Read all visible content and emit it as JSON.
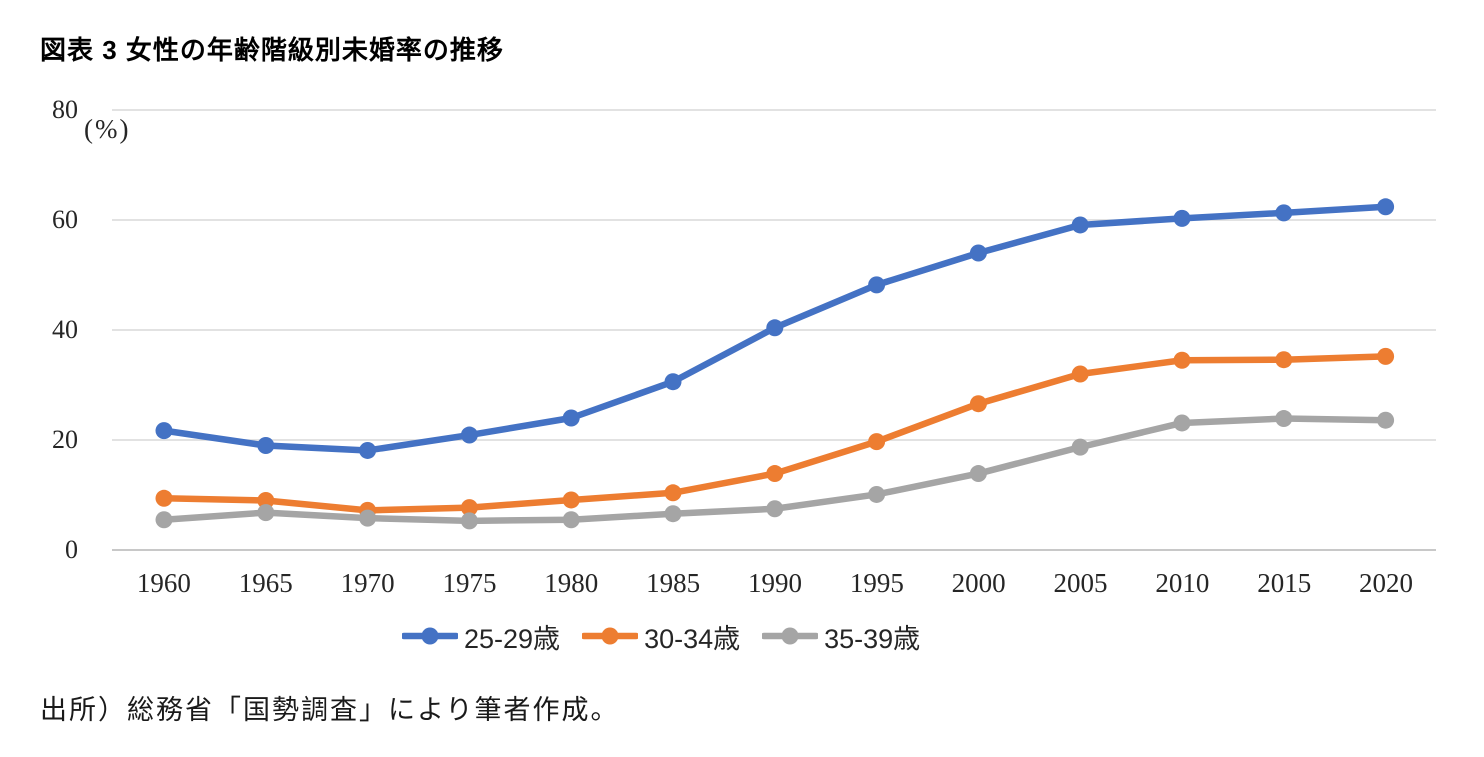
{
  "title": "図表 3 女性の年齢階級別未婚率の推移",
  "source_note": "出所）総務省「国勢調査」により筆者作成。",
  "chart_data": {
    "type": "line",
    "title": "図表 3 女性の年齢階級別未婚率の推移",
    "unit_label": "(%)",
    "xlabel": "",
    "ylabel": "(%)",
    "ylim": [
      0,
      80
    ],
    "grid": "horizontal gridlines only",
    "legend_position": "bottom",
    "categories": [
      1960,
      1965,
      1970,
      1975,
      1980,
      1985,
      1990,
      1995,
      2000,
      2005,
      2010,
      2015,
      2020
    ],
    "x_tick_labels": [
      "1960",
      "1965",
      "1970",
      "1975",
      "1980",
      "1985",
      "1990",
      "1995",
      "2000",
      "2005",
      "2010",
      "2015",
      "2020"
    ],
    "y_ticks": [
      0,
      20,
      40,
      60,
      80
    ],
    "y_tick_labels": [
      "0",
      "20",
      "40",
      "60",
      "80"
    ],
    "series": [
      {
        "name": "25-29歳",
        "color": "#4472C4",
        "values": [
          21.7,
          19.0,
          18.1,
          20.9,
          24.0,
          30.6,
          40.4,
          48.2,
          54.0,
          59.1,
          60.3,
          61.3,
          62.4
        ]
      },
      {
        "name": "30-34歳",
        "color": "#ED7D31",
        "values": [
          9.4,
          9.0,
          7.2,
          7.7,
          9.1,
          10.4,
          13.9,
          19.7,
          26.6,
          32.0,
          34.5,
          34.6,
          35.2
        ]
      },
      {
        "name": "35-39歳",
        "color": "#A5A5A5",
        "values": [
          5.5,
          6.8,
          5.8,
          5.3,
          5.5,
          6.6,
          7.5,
          10.1,
          13.9,
          18.7,
          23.1,
          23.9,
          23.6
        ]
      }
    ],
    "colors": {
      "gridline": "#D9D9D9",
      "axis_line": "#C8C8C8",
      "tick_text": "#262626"
    }
  }
}
